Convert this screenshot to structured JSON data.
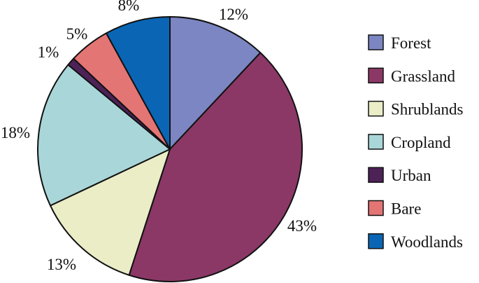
{
  "chart_data": {
    "type": "pie",
    "title": "",
    "legend_position": "right",
    "start": "top, clockwise",
    "slices": [
      {
        "label": "Forest",
        "value": 12,
        "display": "12%",
        "color": "#7b86c2"
      },
      {
        "label": "Grassland",
        "value": 43,
        "display": "43%",
        "color": "#8b3866"
      },
      {
        "label": "Shrublands",
        "value": 13,
        "display": "13%",
        "color": "#eaedc6"
      },
      {
        "label": "Cropland",
        "value": 18,
        "display": "18%",
        "color": "#a9d6d9"
      },
      {
        "label": "Urban",
        "value": 1,
        "display": "1%",
        "color": "#4d2257"
      },
      {
        "label": "Bare",
        "value": 5,
        "display": "5%",
        "color": "#e47575"
      },
      {
        "label": "Woodlands",
        "value": 8,
        "display": "8%",
        "color": "#0a66b4"
      }
    ]
  }
}
